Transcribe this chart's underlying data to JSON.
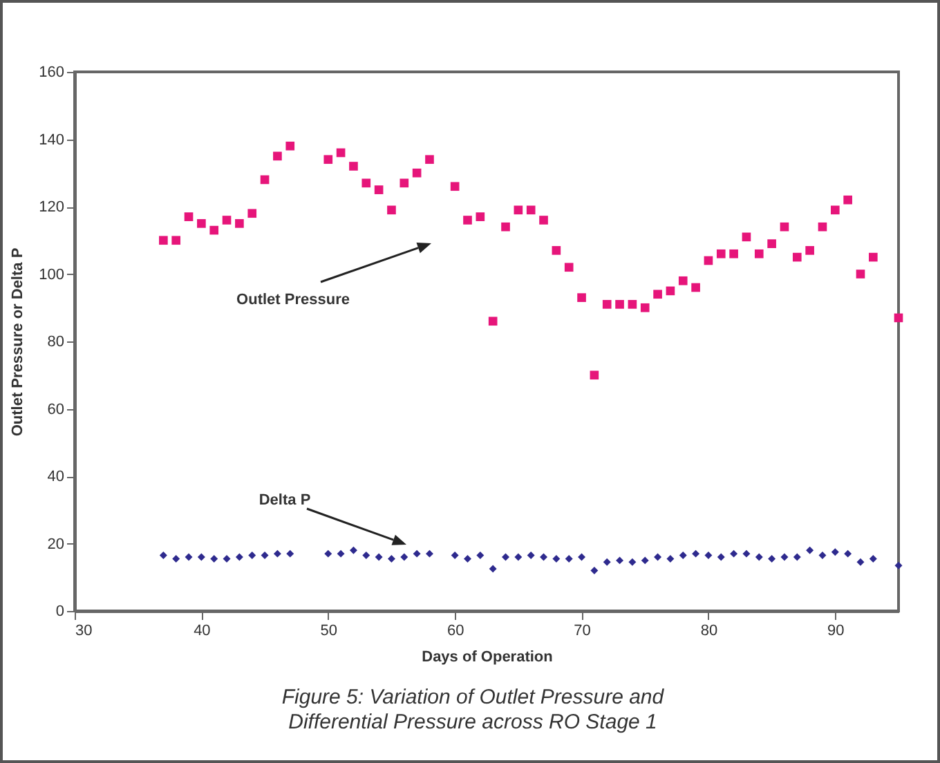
{
  "chart_data": {
    "type": "scatter",
    "xlabel": "Days of Operation",
    "ylabel": "Outlet Pressure or Delta P",
    "xlim": [
      30,
      95
    ],
    "xticks": [
      30,
      40,
      50,
      60,
      70,
      80,
      90
    ],
    "ylim": [
      0,
      160
    ],
    "yticks": [
      0,
      20,
      40,
      60,
      80,
      100,
      120,
      140,
      160
    ],
    "grid": false,
    "x": [
      37,
      38,
      39,
      40,
      41,
      42,
      43,
      44,
      45,
      46,
      47,
      50,
      51,
      52,
      53,
      54,
      55,
      56,
      57,
      58,
      60,
      61,
      62,
      63,
      64,
      65,
      66,
      67,
      68,
      69,
      70,
      71,
      72,
      73,
      74,
      75,
      76,
      77,
      78,
      79,
      80,
      81,
      82,
      83,
      84,
      85,
      86,
      87,
      88,
      89,
      90,
      91,
      92,
      93,
      95
    ],
    "series": [
      {
        "color": "#e6157a",
        "marker": "square",
        "values": [
          110,
          110,
          117,
          115,
          113,
          116,
          115,
          118,
          128,
          135,
          138,
          134,
          136,
          132,
          127,
          125,
          119,
          127,
          130,
          134,
          126,
          116,
          117,
          86,
          114,
          119,
          119,
          116,
          107,
          102,
          93,
          70,
          91,
          91,
          91,
          90,
          94,
          95,
          98,
          96,
          104,
          106,
          106,
          111,
          106,
          109,
          114,
          105,
          107,
          114,
          119,
          122,
          100,
          105,
          87
        ]
      },
      {
        "color": "#2e2a8e",
        "marker": "diamond",
        "values": [
          16.5,
          15.5,
          16,
          16,
          15.5,
          15.5,
          16,
          16.5,
          16.5,
          17,
          17,
          17,
          17,
          18,
          16.5,
          16,
          15.5,
          16,
          17,
          17,
          16.5,
          15.5,
          16.5,
          12.5,
          16,
          16,
          16.5,
          16,
          15.5,
          15.5,
          16,
          12,
          14.5,
          15,
          14.5,
          15,
          16,
          15.5,
          16.5,
          17,
          16.5,
          16,
          17,
          17,
          16,
          15.5,
          16,
          16,
          18,
          16.5,
          17.5,
          17,
          14.5,
          15.5,
          13.5
        ]
      }
    ],
    "annotations": [
      "Outlet Pressure",
      "Delta P",
      "Figure 5: Variation of Outlet Pressure and Differential Pressure across RO Stage 1"
    ]
  }
}
